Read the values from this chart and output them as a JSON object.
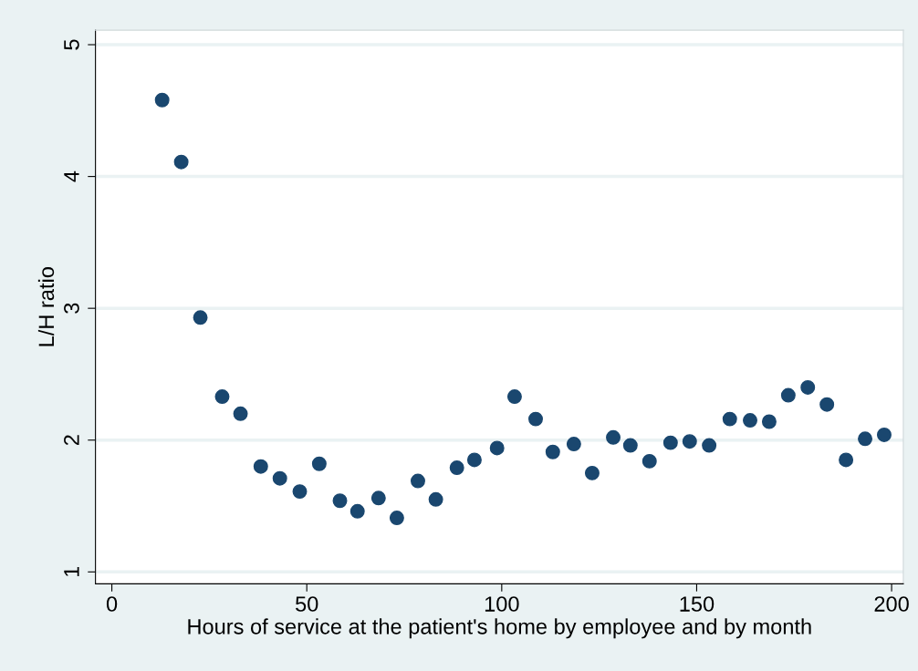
{
  "chart_data": {
    "type": "scatter",
    "xlabel": "Hours of service at the patient's home by employee and by month",
    "ylabel": "L/H ratio",
    "x": [
      12.9,
      17.8,
      22.7,
      28.3,
      33.0,
      38.2,
      43.1,
      48.2,
      53.2,
      58.5,
      63.0,
      68.4,
      73.1,
      78.5,
      83.1,
      88.5,
      93.0,
      98.8,
      103.3,
      108.7,
      113.1,
      118.5,
      123.2,
      128.6,
      133.0,
      137.9,
      143.3,
      148.2,
      153.2,
      158.5,
      163.7,
      168.6,
      173.5,
      178.5,
      183.4,
      188.3,
      193.2,
      198.1
    ],
    "series": [
      {
        "color": "#1a476f",
        "values": [
          4.58,
          4.11,
          2.93,
          2.33,
          2.2,
          1.8,
          1.71,
          1.61,
          1.82,
          1.54,
          1.46,
          1.56,
          1.41,
          1.69,
          1.55,
          1.79,
          1.85,
          1.94,
          2.33,
          2.16,
          1.91,
          1.97,
          1.75,
          2.02,
          1.96,
          1.84,
          1.98,
          1.99,
          1.96,
          2.16,
          2.15,
          2.14,
          2.34,
          2.4,
          2.27,
          1.85,
          2.01,
          2.04
        ]
      }
    ],
    "xlim": [
      -4.2,
      203
    ],
    "ylim": [
      0.91,
      5.11
    ],
    "xticks": [
      0,
      50,
      100,
      150,
      200
    ],
    "yticks": [
      1,
      2,
      3,
      4,
      5
    ],
    "grid": "y",
    "marker": "circle",
    "legend": false
  }
}
